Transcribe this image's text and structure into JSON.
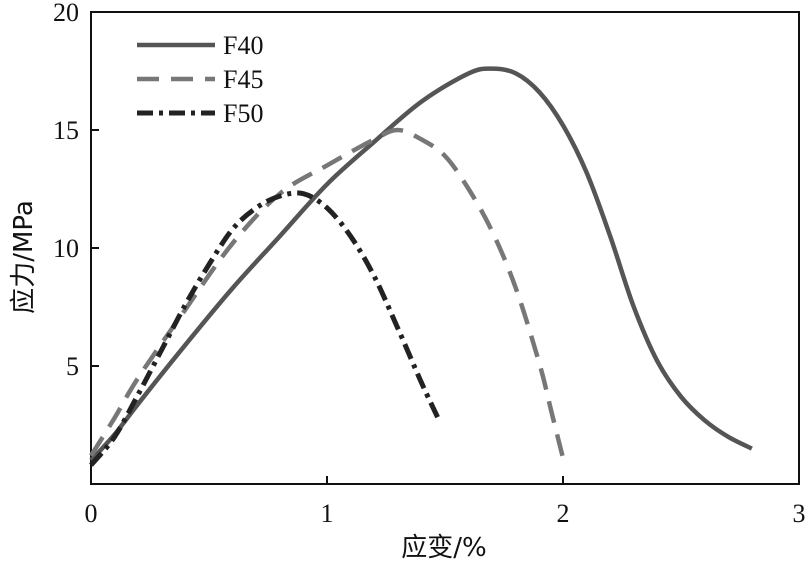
{
  "chart_data": {
    "type": "line",
    "xlabel": "应变/%",
    "ylabel": "应力/MPa",
    "xlim": [
      0,
      3
    ],
    "ylim": [
      0,
      20
    ],
    "x_ticks": [
      "0",
      "1",
      "2",
      "3"
    ],
    "y_ticks": [
      "5",
      "10",
      "15",
      "20"
    ],
    "grid": false,
    "legend_position": "top-left",
    "series": [
      {
        "name": "F40",
        "color": "#555555",
        "dash": "solid",
        "points": [
          [
            0.0,
            1.0
          ],
          [
            0.1,
            2.1
          ],
          [
            0.2,
            3.4
          ],
          [
            0.4,
            5.9
          ],
          [
            0.6,
            8.3
          ],
          [
            0.8,
            10.5
          ],
          [
            1.0,
            12.7
          ],
          [
            1.2,
            14.5
          ],
          [
            1.4,
            16.2
          ],
          [
            1.6,
            17.4
          ],
          [
            1.7,
            17.6
          ],
          [
            1.8,
            17.4
          ],
          [
            1.9,
            16.6
          ],
          [
            2.0,
            15.2
          ],
          [
            2.1,
            13.2
          ],
          [
            2.2,
            10.5
          ],
          [
            2.3,
            7.5
          ],
          [
            2.4,
            5.2
          ],
          [
            2.5,
            3.7
          ],
          [
            2.6,
            2.7
          ],
          [
            2.7,
            2.0
          ],
          [
            2.8,
            1.5
          ]
        ]
      },
      {
        "name": "F45",
        "color": "#777777",
        "dash": "dashed",
        "points": [
          [
            0.0,
            1.2
          ],
          [
            0.1,
            2.8
          ],
          [
            0.2,
            4.5
          ],
          [
            0.4,
            7.4
          ],
          [
            0.6,
            10.2
          ],
          [
            0.8,
            12.3
          ],
          [
            1.0,
            13.5
          ],
          [
            1.2,
            14.6
          ],
          [
            1.3,
            15.0
          ],
          [
            1.4,
            14.6
          ],
          [
            1.5,
            13.9
          ],
          [
            1.6,
            12.5
          ],
          [
            1.7,
            10.7
          ],
          [
            1.8,
            8.3
          ],
          [
            1.9,
            5.1
          ],
          [
            1.95,
            3.1
          ],
          [
            2.0,
            1.1
          ]
        ]
      },
      {
        "name": "F50",
        "color": "#222222",
        "dash": "dashdot",
        "points": [
          [
            0.0,
            0.8
          ],
          [
            0.1,
            2.0
          ],
          [
            0.2,
            3.8
          ],
          [
            0.3,
            5.7
          ],
          [
            0.4,
            7.6
          ],
          [
            0.5,
            9.3
          ],
          [
            0.6,
            10.8
          ],
          [
            0.7,
            11.7
          ],
          [
            0.8,
            12.2
          ],
          [
            0.9,
            12.3
          ],
          [
            1.0,
            11.7
          ],
          [
            1.1,
            10.5
          ],
          [
            1.2,
            8.8
          ],
          [
            1.3,
            6.6
          ],
          [
            1.4,
            4.3
          ],
          [
            1.47,
            2.8
          ]
        ]
      }
    ]
  }
}
